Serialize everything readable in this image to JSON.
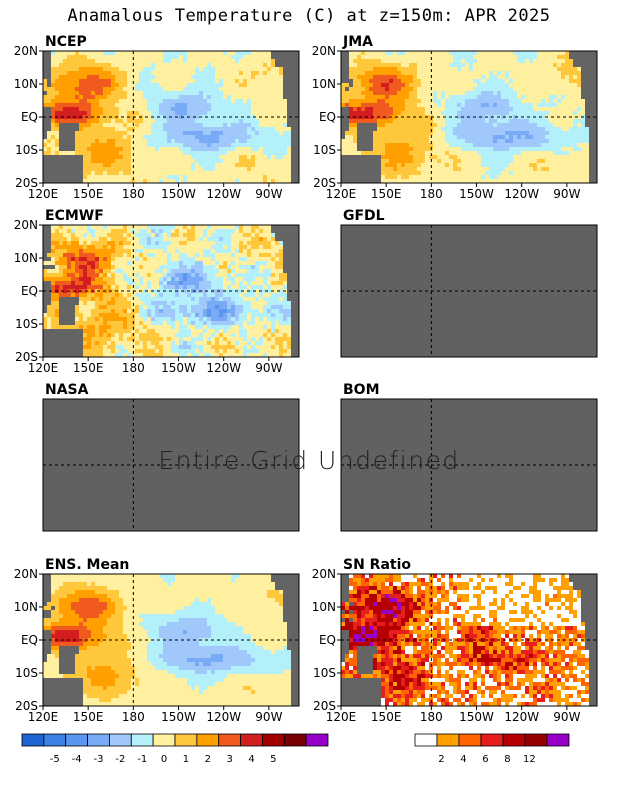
{
  "title": "Anamalous Temperature (C) at z=150m: APR 2025",
  "undefined_message": "Entire Grid Undefined",
  "chart_data": {
    "type": "heatmap",
    "title": "Anamalous Temperature (C) at z=150m: APR 2025",
    "x_ticks": [
      "120E",
      "150E",
      "180",
      "150W",
      "120W",
      "90W"
    ],
    "y_ticks": [
      "20N",
      "10N",
      "EQ",
      "10S",
      "20S"
    ],
    "panels": [
      {
        "name": "NCEP",
        "data_available": true
      },
      {
        "name": "JMA",
        "data_available": true
      },
      {
        "name": "ECMWF",
        "data_available": true
      },
      {
        "name": "GFDL",
        "data_available": false
      },
      {
        "name": "NASA",
        "data_available": false
      },
      {
        "name": "BOM",
        "data_available": false
      },
      {
        "name": "ENS. Mean",
        "data_available": true
      },
      {
        "name": "SN Ratio",
        "data_available": true
      }
    ],
    "colorbars": [
      {
        "levels": [
          "-5",
          "-4",
          "-3",
          "-2",
          "-1",
          "0",
          "1",
          "2",
          "3",
          "4",
          "5"
        ],
        "colors": [
          "#1e64d2",
          "#3c82e6",
          "#5a96f0",
          "#78aaf5",
          "#a0c8fa",
          "#b4f0fa",
          "#fff0a0",
          "#ffc83c",
          "#ffa000",
          "#f05a1e",
          "#d21e1e",
          "#a00000",
          "#780000",
          "#9600c8"
        ]
      },
      {
        "levels": [
          "2",
          "4",
          "6",
          "8",
          "12"
        ],
        "colors": [
          "#ffffff",
          "#ffa000",
          "#ff6400",
          "#e61e1e",
          "#b40000",
          "#960000",
          "#9600c8"
        ]
      }
    ]
  }
}
